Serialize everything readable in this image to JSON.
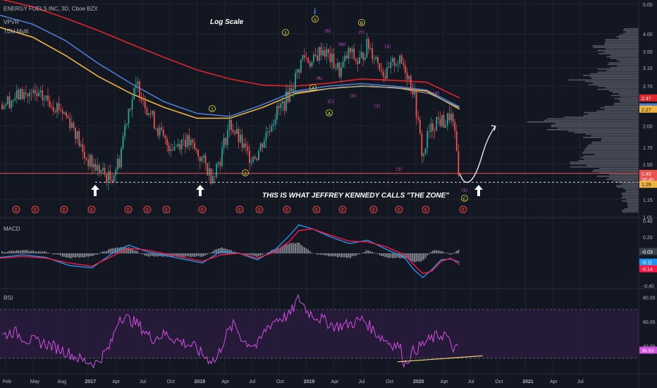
{
  "legend": {
    "symbol": "ENERGY FUELS INC, 3D, Cboe BZX",
    "indicators": [
      "VPVR",
      "TDU Multi"
    ]
  },
  "annotations": {
    "log_scale": "Log Scale",
    "zone_text": "THIS IS WHAT JEFFREY KENNEDY CALLS \"THE ZONE\"",
    "top_marker": "i",
    "earnings": "E"
  },
  "colors": {
    "background": "#131722",
    "grid": "#1f2330",
    "candle_up": "#26a69a",
    "candle_down": "#ef5350",
    "ma_red": "#e0242a",
    "ma_blue": "#4a7bd0",
    "ma_orange": "#f1b43c",
    "ma_grey": "#9aa0a6",
    "wave_yellow": "#e8e23a",
    "wave_magenta": "#d64fd6",
    "macd_line": "#2196f3",
    "signal_line": "#ff1744",
    "rsi_line": "#d24fe0",
    "rsi_band": "#2a1b3d",
    "divergence": "#f5d76e"
  },
  "chart_data": [
    {
      "type": "candlestick",
      "scale": "log",
      "ylim": [
        1.05,
        5.0
      ],
      "x_axis_ticks": [
        "Feb",
        "May",
        "Aug",
        "2017",
        "Apr",
        "Jul",
        "Oct",
        "2018",
        "Apr",
        "Jul",
        "Oct",
        "2019",
        "Apr",
        "Jul",
        "Oct",
        "2020",
        "Apr",
        "Jul",
        "Oct",
        "2021",
        "Apr",
        "Jul"
      ],
      "y_ticks": [
        5.0,
        4.0,
        3.5,
        3.1,
        2.7,
        2.0,
        1.7,
        1.5,
        1.15,
        1.01
      ],
      "price_badges": [
        {
          "label": "2.47",
          "value": 2.47,
          "color": "#e0242a"
        },
        {
          "label": "2.31",
          "value": 2.31,
          "color": "#4a7bd0"
        },
        {
          "label": "2.27",
          "value": 2.27,
          "color": "#f1b43c"
        },
        {
          "label": "1.40",
          "value": 1.4,
          "color": "#ef5350"
        },
        {
          "label": "3d 4h",
          "value": 1.34,
          "color": "#ef5350"
        },
        {
          "label": "1.29",
          "value": 1.29,
          "color": "#f1b43c"
        }
      ],
      "support_level": 1.4,
      "zone_level": 1.31,
      "price_path": [
        [
          0,
          2.35
        ],
        [
          0.05,
          2.55
        ],
        [
          0.1,
          2.45
        ],
        [
          0.13,
          2.3
        ],
        [
          0.16,
          2.0
        ],
        [
          0.18,
          1.62
        ],
        [
          0.2,
          1.5
        ],
        [
          0.22,
          1.42
        ],
        [
          0.24,
          1.34
        ],
        [
          0.26,
          1.55
        ],
        [
          0.28,
          2.3
        ],
        [
          0.3,
          2.72
        ],
        [
          0.32,
          2.3
        ],
        [
          0.34,
          2.0
        ],
        [
          0.36,
          1.75
        ],
        [
          0.38,
          1.72
        ],
        [
          0.4,
          1.82
        ],
        [
          0.42,
          1.7
        ],
        [
          0.44,
          1.55
        ],
        [
          0.46,
          1.37
        ],
        [
          0.48,
          1.58
        ],
        [
          0.5,
          2.05
        ],
        [
          0.52,
          1.8
        ],
        [
          0.54,
          1.6
        ],
        [
          0.56,
          1.62
        ],
        [
          0.58,
          1.9
        ],
        [
          0.6,
          2.2
        ],
        [
          0.62,
          2.4
        ],
        [
          0.64,
          2.8
        ],
        [
          0.66,
          3.4
        ],
        [
          0.68,
          3.2
        ],
        [
          0.7,
          3.6
        ],
        [
          0.72,
          3.3
        ],
        [
          0.74,
          3.0
        ],
        [
          0.76,
          3.5
        ],
        [
          0.78,
          3.2
        ],
        [
          0.8,
          3.7
        ],
        [
          0.82,
          3.3
        ],
        [
          0.84,
          2.9
        ],
        [
          0.86,
          3.3
        ],
        [
          0.88,
          3.15
        ],
        [
          0.9,
          2.6
        ],
        [
          0.91,
          2.0
        ],
        [
          0.92,
          1.55
        ],
        [
          0.93,
          1.85
        ],
        [
          0.95,
          2.1
        ],
        [
          0.97,
          2.05
        ],
        [
          0.98,
          2.2
        ],
        [
          0.99,
          1.8
        ],
        [
          1.0,
          1.35
        ]
      ],
      "moving_averages": [
        {
          "name": "MA red",
          "color": "#e0242a",
          "values": [
            5.2,
            4.9,
            4.5,
            4.1,
            3.7,
            3.35,
            3.05,
            2.85,
            2.72,
            2.7,
            2.76,
            2.85,
            2.82,
            2.78,
            2.47
          ]
        },
        {
          "name": "MA blue",
          "color": "#4a7bd0",
          "values": [
            4.6,
            4.3,
            3.8,
            3.2,
            2.75,
            2.4,
            2.2,
            2.15,
            2.35,
            2.6,
            2.7,
            2.75,
            2.7,
            2.62,
            2.31
          ]
        },
        {
          "name": "MA orange",
          "color": "#f1b43c",
          "values": [
            4.2,
            3.9,
            3.4,
            2.9,
            2.55,
            2.3,
            2.12,
            2.12,
            2.3,
            2.55,
            2.65,
            2.7,
            2.67,
            2.6,
            2.27
          ]
        }
      ],
      "elliott_labels": [
        "1",
        "2",
        "3",
        "4",
        "5",
        "A",
        "B",
        "(A)",
        "(B)",
        "(C)",
        "(W)",
        "(X)",
        "(Y)",
        "(1)",
        "(2)",
        "(3)",
        "(4)",
        "(5)",
        "C"
      ],
      "earnings_markers": 16
    },
    {
      "type": "line",
      "title": "MACD",
      "ylim": [
        -0.4,
        0.4
      ],
      "y_ticks": [
        0.4,
        0.2,
        -0.03,
        -0.11,
        -0.14,
        -0.4
      ],
      "badges": [
        {
          "label": "-0.03",
          "value": -0.03,
          "color": "#3a3f4c"
        },
        {
          "label": "-0.11",
          "value": -0.11,
          "color": "#2196f3"
        },
        {
          "label": "-0.14",
          "value": -0.14,
          "color": "#ff1744"
        }
      ],
      "macd_path": [
        [
          0,
          -0.05
        ],
        [
          0.05,
          -0.02
        ],
        [
          0.1,
          -0.05
        ],
        [
          0.15,
          -0.15
        ],
        [
          0.2,
          -0.18
        ],
        [
          0.25,
          0.02
        ],
        [
          0.28,
          0.1
        ],
        [
          0.32,
          0.02
        ],
        [
          0.38,
          -0.05
        ],
        [
          0.44,
          -0.12
        ],
        [
          0.48,
          0.02
        ],
        [
          0.52,
          0.0
        ],
        [
          0.56,
          -0.08
        ],
        [
          0.6,
          0.05
        ],
        [
          0.63,
          0.22
        ],
        [
          0.65,
          0.35
        ],
        [
          0.68,
          0.3
        ],
        [
          0.72,
          0.2
        ],
        [
          0.76,
          0.12
        ],
        [
          0.8,
          0.16
        ],
        [
          0.84,
          0.05
        ],
        [
          0.88,
          -0.05
        ],
        [
          0.9,
          -0.2
        ],
        [
          0.92,
          -0.3
        ],
        [
          0.94,
          -0.2
        ],
        [
          0.96,
          -0.08
        ],
        [
          0.98,
          -0.07
        ],
        [
          1.0,
          -0.11
        ]
      ],
      "signal_path": [
        [
          0,
          -0.06
        ],
        [
          0.05,
          -0.04
        ],
        [
          0.1,
          -0.06
        ],
        [
          0.15,
          -0.12
        ],
        [
          0.2,
          -0.16
        ],
        [
          0.25,
          -0.02
        ],
        [
          0.28,
          0.06
        ],
        [
          0.32,
          0.04
        ],
        [
          0.38,
          -0.03
        ],
        [
          0.44,
          -0.1
        ],
        [
          0.48,
          -0.02
        ],
        [
          0.52,
          0.0
        ],
        [
          0.56,
          -0.06
        ],
        [
          0.6,
          0.02
        ],
        [
          0.63,
          0.15
        ],
        [
          0.65,
          0.28
        ],
        [
          0.68,
          0.3
        ],
        [
          0.72,
          0.22
        ],
        [
          0.76,
          0.15
        ],
        [
          0.8,
          0.14
        ],
        [
          0.84,
          0.08
        ],
        [
          0.88,
          -0.02
        ],
        [
          0.9,
          -0.14
        ],
        [
          0.92,
          -0.25
        ],
        [
          0.94,
          -0.22
        ],
        [
          0.96,
          -0.1
        ],
        [
          0.98,
          -0.06
        ],
        [
          1.0,
          -0.14
        ]
      ]
    },
    {
      "type": "line",
      "title": "RSI",
      "ylim": [
        20,
        85
      ],
      "y_ticks": [
        80.0,
        60.0,
        40.0,
        36.63
      ],
      "badge": {
        "label": "36.63",
        "value": 36.63,
        "color": "#d24fe0"
      },
      "band": [
        30,
        70
      ],
      "rsi_path": [
        [
          0,
          48
        ],
        [
          0.03,
          52
        ],
        [
          0.06,
          45
        ],
        [
          0.1,
          42
        ],
        [
          0.14,
          36
        ],
        [
          0.18,
          28
        ],
        [
          0.21,
          26
        ],
        [
          0.24,
          40
        ],
        [
          0.26,
          65
        ],
        [
          0.28,
          62
        ],
        [
          0.3,
          58
        ],
        [
          0.33,
          46
        ],
        [
          0.36,
          50
        ],
        [
          0.39,
          44
        ],
        [
          0.42,
          40
        ],
        [
          0.45,
          30
        ],
        [
          0.47,
          28
        ],
        [
          0.49,
          48
        ],
        [
          0.51,
          58
        ],
        [
          0.53,
          44
        ],
        [
          0.56,
          40
        ],
        [
          0.58,
          55
        ],
        [
          0.6,
          62
        ],
        [
          0.63,
          65
        ],
        [
          0.65,
          80
        ],
        [
          0.67,
          68
        ],
        [
          0.7,
          62
        ],
        [
          0.73,
          56
        ],
        [
          0.76,
          58
        ],
        [
          0.79,
          62
        ],
        [
          0.82,
          50
        ],
        [
          0.85,
          42
        ],
        [
          0.87,
          40
        ],
        [
          0.88,
          25
        ],
        [
          0.9,
          36
        ],
        [
          0.93,
          44
        ],
        [
          0.95,
          48
        ],
        [
          0.97,
          50
        ],
        [
          0.98,
          40
        ],
        [
          1.0,
          36
        ]
      ],
      "divergence": [
        [
          0.865,
          27
        ],
        [
          1.05,
          32
        ]
      ]
    }
  ]
}
